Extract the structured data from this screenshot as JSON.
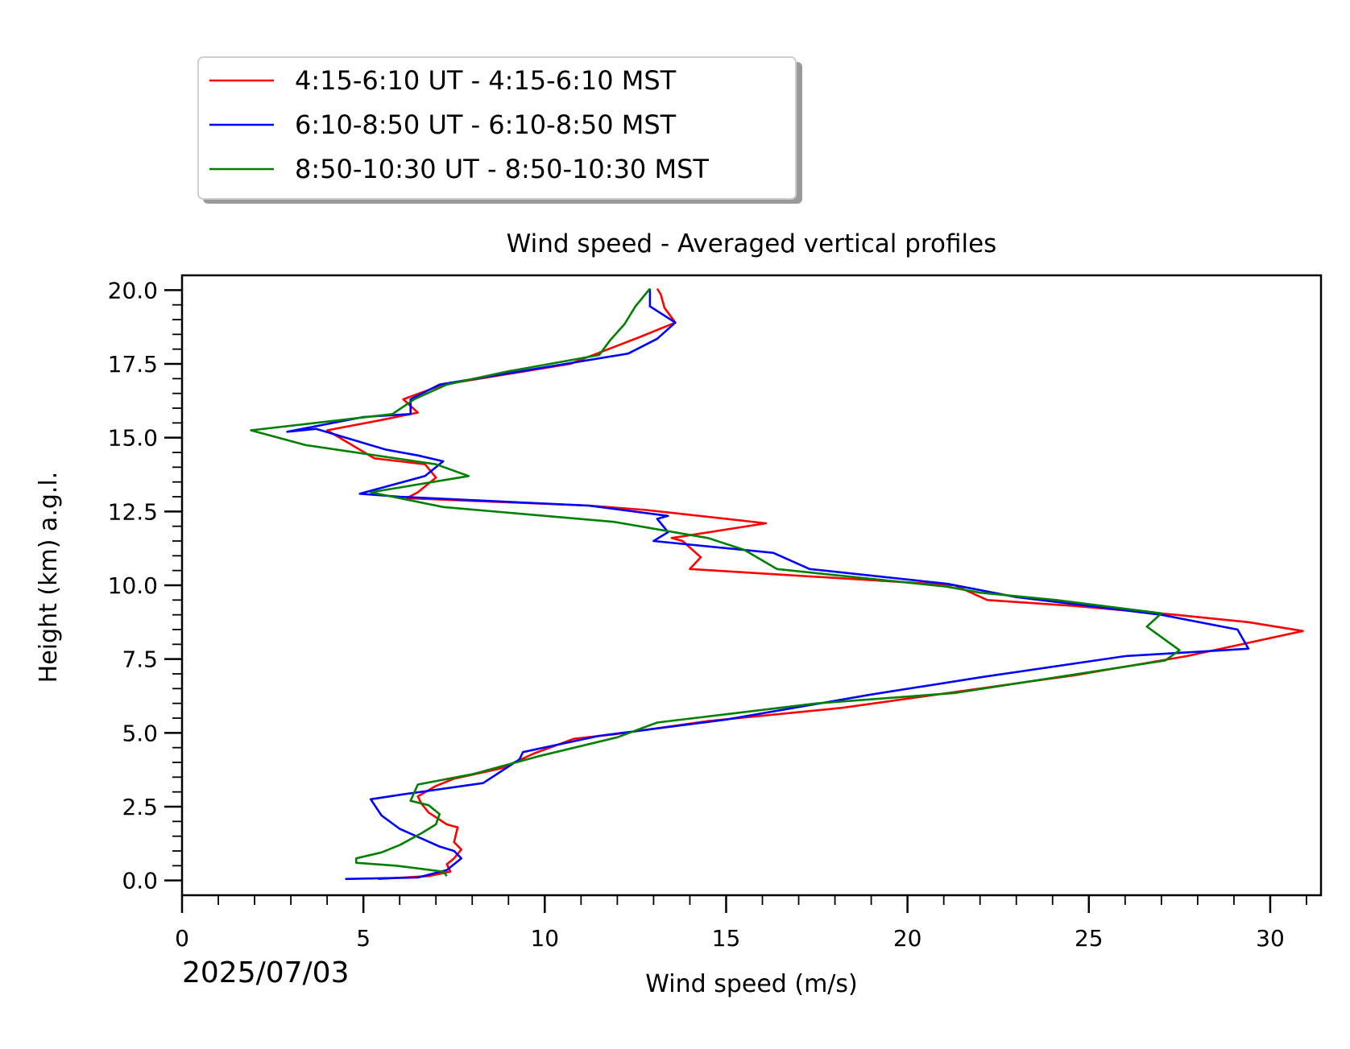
{
  "chart_data": {
    "type": "line",
    "title": "Wind speed - Averaged vertical profiles",
    "xlabel": "Wind speed (m/s)",
    "ylabel": "Height (km) a.g.l.",
    "date_label": "2025/07/03",
    "xlim": [
      0,
      31.4
    ],
    "ylim": [
      -0.5,
      20.5
    ],
    "xticks": [
      "0",
      "5",
      "10",
      "15",
      "20",
      "25",
      "30"
    ],
    "yticks": [
      "0.0",
      "2.5",
      "5.0",
      "7.5",
      "10.0",
      "12.5",
      "15.0",
      "17.5",
      "20.0"
    ],
    "grid": false,
    "legend_position": "upper-left outside",
    "series": [
      {
        "name": "4:15-6:10 UT - 4:15-6:10 MST",
        "color": "#ff0000",
        "x": [
          5.4,
          6.8,
          7.4,
          7.3,
          7.5,
          7.7,
          7.5,
          7.6,
          7.3,
          6.8,
          6.6,
          6.5,
          7.0,
          7.5,
          8.8,
          9.7,
          10.8,
          11.9,
          14.5,
          18.2,
          21.4,
          24.6,
          27.7,
          30.9,
          29.4,
          27.4,
          24.6,
          22.2,
          21.3,
          14.0,
          14.3,
          13.8,
          13.5,
          16.1,
          12.8,
          11.2,
          6.2,
          6.5,
          7.0,
          6.7,
          5.3,
          4.0,
          5.5,
          6.5,
          6.1,
          7.2,
          10.7,
          12.6,
          13.6,
          13.3,
          13.2,
          13.1
        ],
        "y": [
          0.05,
          0.15,
          0.3,
          0.55,
          0.75,
          1.05,
          1.3,
          1.8,
          1.9,
          2.3,
          2.6,
          2.85,
          3.2,
          3.45,
          3.8,
          4.3,
          4.8,
          4.95,
          5.4,
          5.85,
          6.4,
          6.95,
          7.6,
          8.45,
          8.75,
          9.0,
          9.3,
          9.5,
          10.0,
          10.55,
          10.95,
          11.5,
          11.6,
          12.1,
          12.55,
          12.7,
          12.95,
          13.15,
          13.65,
          14.1,
          14.3,
          15.25,
          15.6,
          15.85,
          16.3,
          16.8,
          17.5,
          18.4,
          18.9,
          19.4,
          19.85,
          20.05
        ]
      },
      {
        "name": "6:10-8:50 UT - 6:10-8:50 MST",
        "color": "#0000ff",
        "x": [
          4.5,
          6.5,
          7.3,
          7.7,
          7.5,
          7.1,
          6.0,
          5.5,
          5.2,
          6.0,
          8.3,
          9.3,
          9.4,
          11.5,
          15.0,
          19.0,
          22.1,
          26.0,
          29.4,
          29.1,
          27.0,
          23.0,
          21.1,
          17.3,
          16.3,
          13.0,
          13.4,
          13.1,
          13.4,
          11.2,
          6.0,
          4.9,
          6.7,
          7.2,
          6.5,
          5.6,
          3.7,
          2.9,
          5.0,
          6.3,
          6.3,
          7.1,
          12.3,
          13.1,
          13.6,
          12.9,
          12.9
        ],
        "y": [
          0.05,
          0.1,
          0.35,
          0.75,
          1.0,
          1.15,
          1.75,
          2.2,
          2.75,
          2.9,
          3.3,
          4.1,
          4.35,
          4.9,
          5.45,
          6.3,
          6.9,
          7.6,
          7.85,
          8.5,
          9.0,
          9.6,
          10.05,
          10.55,
          11.1,
          11.5,
          11.8,
          12.25,
          12.35,
          12.7,
          13.0,
          13.1,
          13.7,
          14.2,
          14.4,
          14.6,
          15.3,
          15.2,
          15.7,
          15.8,
          16.3,
          16.8,
          17.85,
          18.35,
          18.9,
          19.45,
          20.05
        ]
      },
      {
        "name": "8:50-10:30 UT - 8:50-10:30 MST",
        "color": "#008000",
        "x": [
          7.3,
          7.2,
          5.9,
          4.8,
          4.8,
          5.5,
          6.0,
          6.6,
          7.0,
          7.1,
          6.8,
          6.3,
          6.5,
          8.0,
          9.8,
          12.0,
          13.1,
          17.5,
          21.3,
          27.1,
          27.5,
          26.6,
          27.0,
          24.1,
          22.0,
          21.1,
          16.4,
          15.5,
          14.5,
          11.9,
          7.2,
          5.2,
          7.9,
          7.0,
          3.4,
          1.9,
          5.8,
          6.4,
          7.3,
          9.0,
          11.5,
          11.8,
          12.2,
          12.5,
          12.9
        ],
        "y": [
          0.15,
          0.3,
          0.5,
          0.6,
          0.75,
          0.95,
          1.2,
          1.6,
          1.9,
          2.25,
          2.55,
          2.7,
          3.25,
          3.6,
          4.2,
          4.85,
          5.35,
          6.0,
          6.35,
          7.45,
          7.8,
          8.6,
          9.05,
          9.5,
          9.75,
          9.95,
          10.55,
          11.2,
          11.6,
          12.15,
          12.65,
          13.15,
          13.7,
          14.1,
          14.75,
          15.25,
          15.8,
          16.3,
          16.8,
          17.25,
          17.8,
          18.3,
          18.85,
          19.45,
          20.05
        ]
      }
    ]
  }
}
